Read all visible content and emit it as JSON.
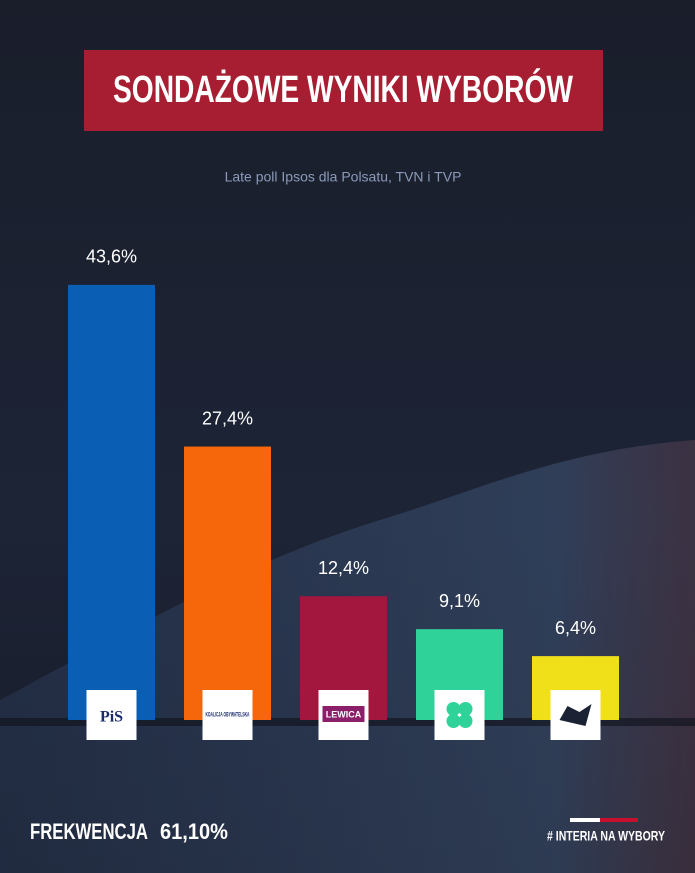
{
  "chart_data": {
    "type": "bar",
    "title": "SONDAŻOWE WYNIKI WYBORÓW",
    "subtitle": "Late poll Ipsos dla Polsatu, TVN i TVP",
    "categories": [
      "PiS",
      "KOALICJA OBYWATELSKA",
      "LEWICA",
      null,
      null
    ],
    "values": [
      43.6,
      27.4,
      12.4,
      9.1,
      6.4
    ],
    "value_labels": [
      "43,6%",
      "27,4%",
      "12,4%",
      "9,1%",
      "6,4%"
    ],
    "colors": [
      "#0a5fb4",
      "#f5670a",
      "#a3173f",
      "#2fd39a",
      "#f0e01a"
    ]
  },
  "footer": {
    "turnout_label": "FREKWENCJA",
    "turnout": "61,10%",
    "brand": "# INTERIA NA WYBORY"
  }
}
